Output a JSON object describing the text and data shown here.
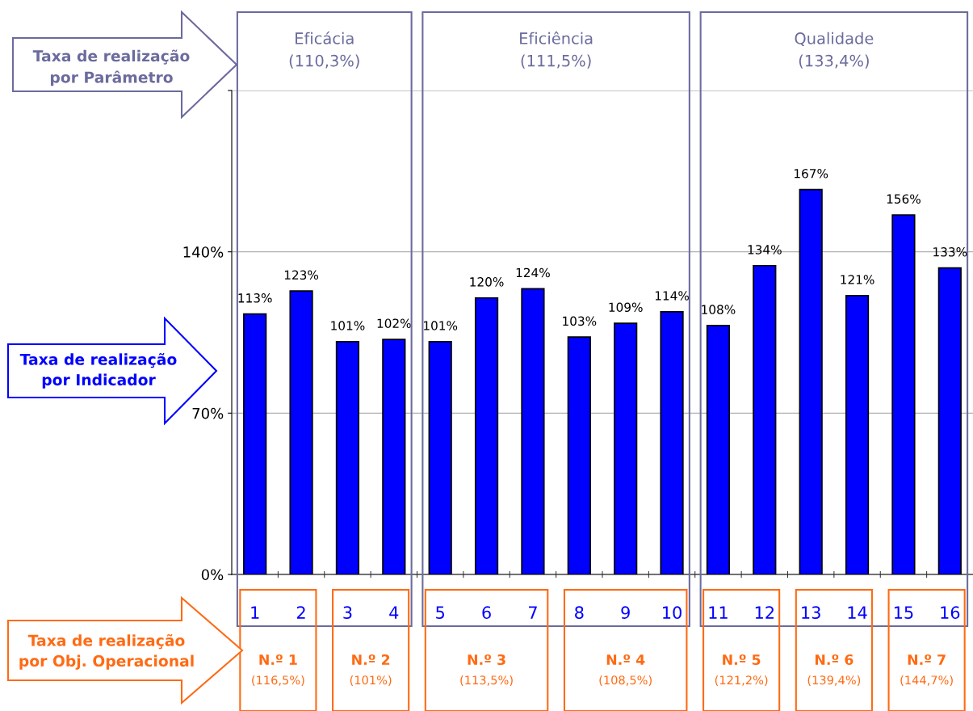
{
  "chart_data": {
    "type": "bar",
    "categories": [
      "1",
      "2",
      "3",
      "4",
      "5",
      "6",
      "7",
      "8",
      "9",
      "10",
      "11",
      "12",
      "13",
      "14",
      "15",
      "16"
    ],
    "values": [
      113,
      123,
      101,
      102,
      101,
      120,
      124,
      103,
      109,
      114,
      108,
      134,
      167,
      121,
      156,
      133
    ],
    "value_labels": [
      "113%",
      "123%",
      "101%",
      "102%",
      "101%",
      "120%",
      "124%",
      "103%",
      "109%",
      "114%",
      "108%",
      "134%",
      "167%",
      "121%",
      "156%",
      "133%"
    ],
    "color": "#0000ff",
    "ylim": [
      0,
      210
    ],
    "yticks": [
      {
        "value": 0,
        "label": "0%"
      },
      {
        "value": 70,
        "label": "70%"
      },
      {
        "value": 140,
        "label": "140%"
      },
      {
        "value": 210,
        "label": null
      }
    ],
    "grid": "y",
    "annotations": [
      "Taxa de realização\npor Parâmetro",
      "Taxa de realização\npor Indicador",
      "Taxa de realização\npor Obj. Operacional",
      "Eficácia\n(110,3%)",
      "Eficiência\n(111,5%)",
      "Qualidade\n(133,4%)",
      "N.º 1",
      "(116,5%)",
      "N.º 2",
      "(101%)",
      "N.º 3",
      "(113,5%)",
      "N.º 4",
      "(108,5%)",
      "N.º 5",
      "(121,2%)",
      "N.º 6",
      "(139,4%)",
      "N.º 7",
      "(144,7%)"
    ]
  }
}
